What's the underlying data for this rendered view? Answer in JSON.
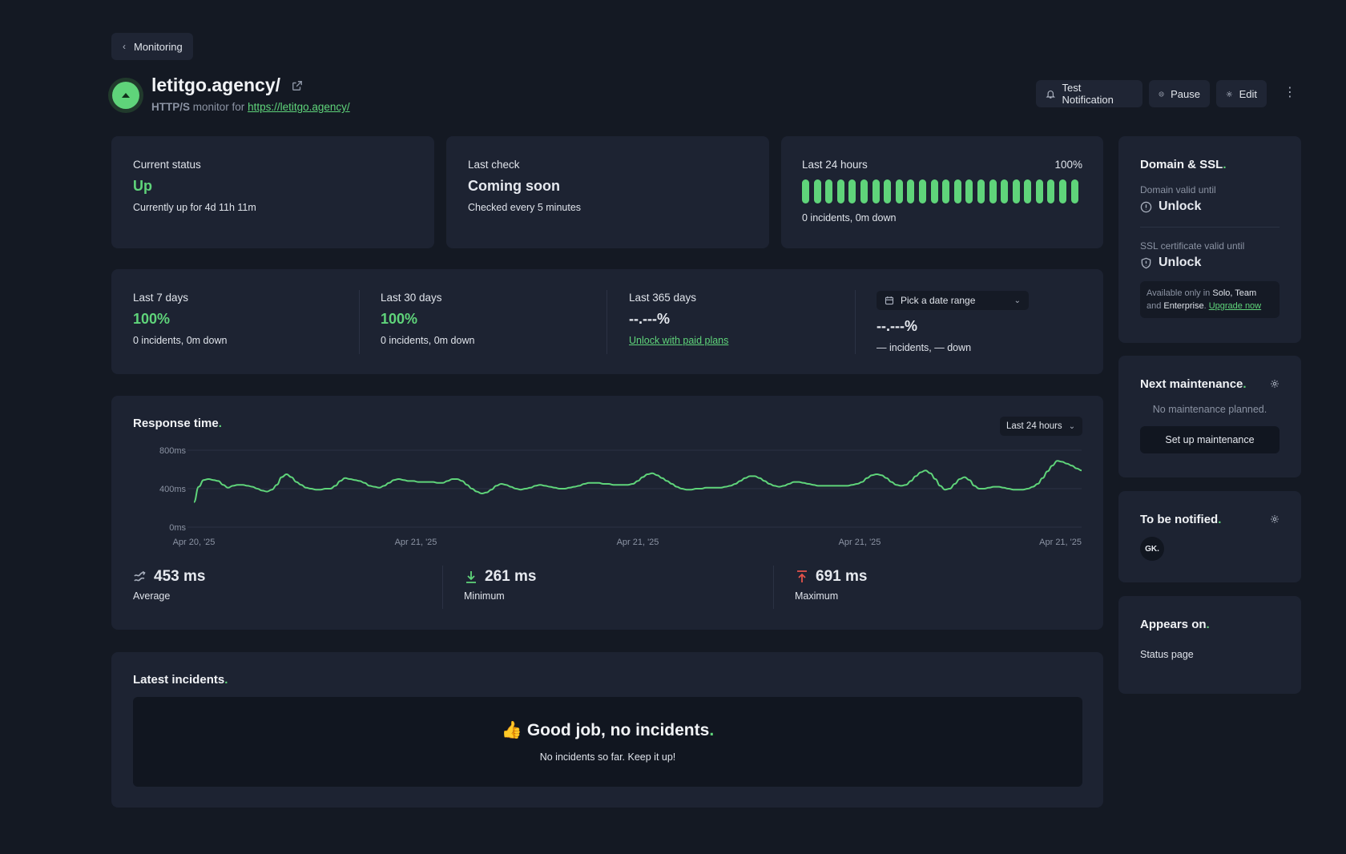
{
  "nav": {
    "back_label": "Monitoring"
  },
  "monitor": {
    "name": "letitgo.agency/",
    "type": "HTTP/S",
    "monitor_for_text": "monitor for",
    "url": "https://letitgo.agency/"
  },
  "actions": {
    "test_notification": "Test Notification",
    "pause": "Pause",
    "edit": "Edit",
    "more": "⋮"
  },
  "current_status": {
    "label": "Current status",
    "value": "Up",
    "detail": "Currently up for 4d 11h 11m"
  },
  "last_check": {
    "label": "Last check",
    "value": "Coming soon",
    "detail": "Checked every 5 minutes"
  },
  "last_24h": {
    "label": "Last 24 hours",
    "percent": "100%",
    "detail": "0 incidents, 0m down",
    "bar_count": 24,
    "bar_color": "#5fd47a"
  },
  "ranges": [
    {
      "label": "Last 7 days",
      "value": "100%",
      "detail": "0 incidents, 0m down"
    },
    {
      "label": "Last 30 days",
      "value": "100%",
      "detail": "0 incidents, 0m down"
    },
    {
      "label": "Last 365 days",
      "value": "--.---%",
      "link": "Unlock with paid plans"
    }
  ],
  "custom_range": {
    "picker": "Pick a date range",
    "value": "--.---%",
    "detail": "— incidents, — down"
  },
  "response_time": {
    "title": "Response time",
    "title_dot": ".",
    "period": "Last 24 hours",
    "stats": {
      "average": {
        "value": "453 ms",
        "label": "Average"
      },
      "minimum": {
        "value": "261 ms",
        "label": "Minimum"
      },
      "maximum": {
        "value": "691 ms",
        "label": "Maximum"
      }
    }
  },
  "chart_data": {
    "type": "line",
    "title": "Response time.",
    "xlabel": "",
    "ylabel": "",
    "y_ticks": [
      "800ms",
      "400ms",
      "0ms"
    ],
    "x_ticks": [
      "Apr 20, '25",
      "Apr 21, '25",
      "Apr 21, '25",
      "Apr 21, '25",
      "Apr 21, '25"
    ],
    "ylim": [
      0,
      800
    ],
    "grid": true,
    "line_color": "#5fd47a",
    "series": [
      {
        "values": [
          260,
          420,
          490,
          500,
          490,
          480,
          440,
          410,
          430,
          440,
          440,
          430,
          420,
          400,
          380,
          370,
          390,
          440,
          520,
          550,
          520,
          470,
          440,
          410,
          400,
          390,
          390,
          400,
          400,
          430,
          480,
          510,
          500,
          490,
          480,
          460,
          430,
          420,
          410,
          430,
          460,
          490,
          500,
          490,
          480,
          480,
          470,
          470,
          470,
          470,
          460,
          460,
          480,
          500,
          500,
          480,
          440,
          400,
          370,
          350,
          360,
          390,
          430,
          450,
          440,
          420,
          400,
          390,
          400,
          410,
          430,
          440,
          430,
          420,
          410,
          400,
          400,
          410,
          420,
          430,
          450,
          460,
          460,
          460,
          450,
          450,
          440,
          440,
          440,
          440,
          450,
          480,
          520,
          550,
          560,
          540,
          510,
          480,
          450,
          420,
          400,
          390,
          390,
          400,
          400,
          410,
          410,
          410,
          410,
          420,
          430,
          450,
          480,
          510,
          530,
          530,
          510,
          480,
          450,
          430,
          420,
          430,
          450,
          470,
          470,
          460,
          450,
          440,
          430,
          430,
          430,
          430,
          430,
          430,
          430,
          440,
          450,
          470,
          510,
          540,
          550,
          540,
          510,
          470,
          440,
          430,
          440,
          480,
          530,
          570,
          590,
          560,
          500,
          430,
          390,
          400,
          450,
          500,
          520,
          490,
          430,
          400,
          400,
          410,
          420,
          420,
          410,
          400,
          390,
          390,
          390,
          400,
          420,
          450,
          510,
          580,
          640,
          690,
          680,
          660,
          640,
          610,
          590
        ]
      }
    ]
  },
  "incidents": {
    "title": "Latest incidents",
    "title_dot": ".",
    "emoji": "👍",
    "empty_title": "Good job, no incidents",
    "empty_title_dot": ".",
    "empty_sub": "No incidents so far. Keep it up!"
  },
  "domain_ssl": {
    "title": "Domain & SSL",
    "title_dot": ".",
    "domain_label": "Domain valid until",
    "domain_value": "Unlock",
    "ssl_label": "SSL certificate valid until",
    "ssl_value": "Unlock",
    "note_prefix": "Available only in",
    "note_plans_1": "Solo, Team",
    "note_and": "and",
    "note_plans_2": "Enterprise",
    "note_period": ".",
    "note_link": "Upgrade now"
  },
  "maintenance": {
    "title": "Next maintenance",
    "title_dot": ".",
    "empty": "No maintenance planned.",
    "button": "Set up maintenance"
  },
  "notified": {
    "title": "To be notified",
    "title_dot": ".",
    "avatar": "GK."
  },
  "appears_on": {
    "title": "Appears on",
    "title_dot": ".",
    "item": "Status page"
  },
  "colors": {
    "accent": "#5fd47a",
    "background": "#141923",
    "card": "#1d2332",
    "danger": "#e5534b"
  }
}
